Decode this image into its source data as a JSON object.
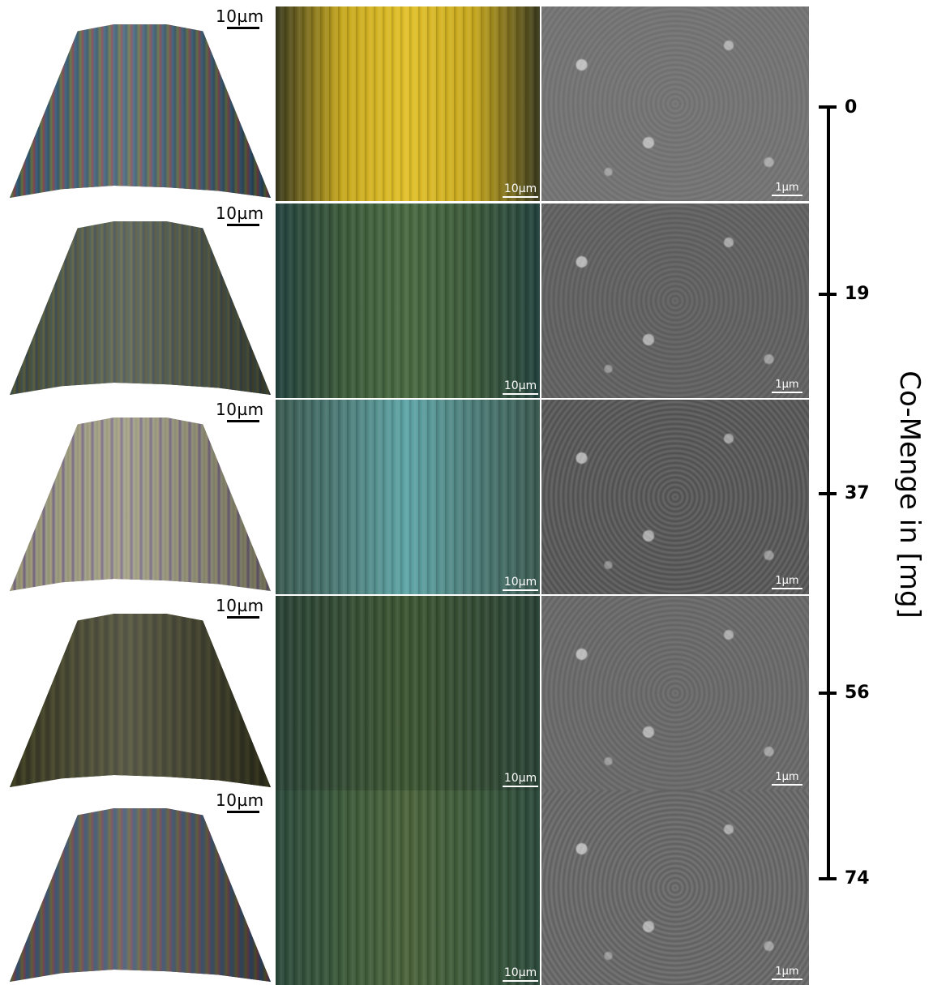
{
  "scale_left": "10µm",
  "scale_mid": "10µm",
  "scale_sem": "1µm",
  "axis": {
    "title": "Co-Menge in [mg]",
    "ticks": [
      "0",
      "19",
      "37",
      "56",
      "74"
    ]
  },
  "rows": [
    {
      "co_mg": 0
    },
    {
      "co_mg": 19
    },
    {
      "co_mg": 37
    },
    {
      "co_mg": 56
    },
    {
      "co_mg": 74
    }
  ],
  "colors": {
    "axis": "#000000",
    "background": "#ffffff"
  }
}
